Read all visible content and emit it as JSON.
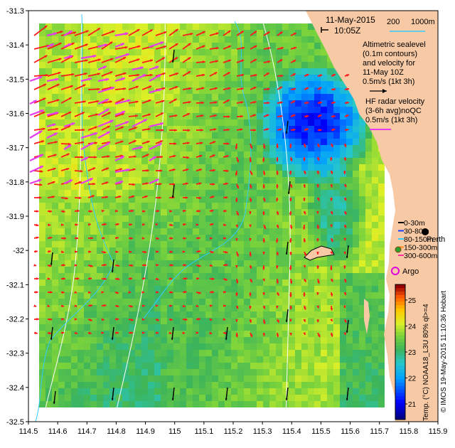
{
  "header": {
    "date": "11-May-2015",
    "time": "10:05Z",
    "scale_labels": [
      "200",
      "1000m"
    ]
  },
  "legend": {
    "altimetry_lines": [
      "Altimetric sealevel",
      "(0.1m contours)",
      "and velocity for",
      "11-May 10Z",
      "0.5m/s (1kt 3h)"
    ],
    "hf_lines": [
      "HF radar velocity",
      "(3-6h avg)noQC",
      "0.5m/s (1kt 3h)"
    ],
    "depth_classes": [
      {
        "label": "0-30m",
        "color": "#000000"
      },
      {
        "label": "30-80m",
        "color": "#1e3cff"
      },
      {
        "label": "80-150m",
        "color": "#33ccff"
      },
      {
        "label": "150-300m",
        "color": "#ff8c1a"
      },
      {
        "label": "300-600m",
        "color": "#ff3399"
      }
    ],
    "argo_label": "Argo",
    "place_label": "Perth"
  },
  "colorbar": {
    "label": "Temp. (°C) NOAA18_L3U 80% ql>=4",
    "ticks": [
      "21",
      "22",
      "23",
      "24",
      "25"
    ],
    "min": 20.4,
    "max": 25.6
  },
  "credit": "© IMOS 19-May-2015 11:10:36 Hobart",
  "axes": {
    "x_ticks": [
      "114.5",
      "114.6",
      "114.7",
      "114.8",
      "114.9",
      "115",
      "115.1",
      "115.2",
      "115.3",
      "115.4",
      "115.5",
      "115.6",
      "115.7",
      "115.8",
      "115.9"
    ],
    "y_ticks": [
      "-31.3",
      "-31.4",
      "-31.5",
      "-31.6",
      "-31.7",
      "-31.8",
      "-31.9",
      "-32",
      "-32.1",
      "-32.2",
      "-32.3",
      "-32.4",
      "-32.5"
    ],
    "xlim": [
      114.5,
      115.9
    ],
    "ylim": [
      -32.5,
      -31.3
    ]
  },
  "colors": {
    "land": "#f7c9a4",
    "hf_arrow": "#ff1a1a",
    "alt_arrow": "#e63cf0",
    "contour": "#ffffff",
    "isobath": "#33ccff"
  }
}
